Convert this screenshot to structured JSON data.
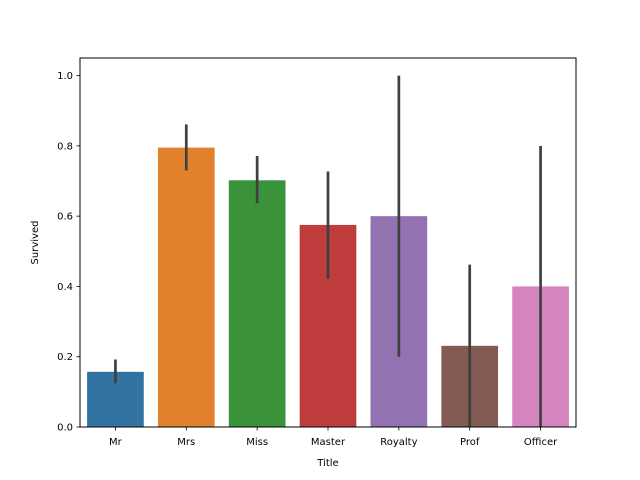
{
  "chart_data": {
    "type": "bar",
    "title": "",
    "xlabel": "Title",
    "ylabel": "Survived",
    "ylim": [
      0,
      1.05
    ],
    "yticks": [
      0.0,
      0.2,
      0.4,
      0.6,
      0.8,
      1.0
    ],
    "ytick_labels": [
      "0.0",
      "0.2",
      "0.4",
      "0.6",
      "0.8",
      "1.0"
    ],
    "grid": false,
    "legend": "none",
    "categories": [
      "Mr",
      "Mrs",
      "Miss",
      "Master",
      "Royalty",
      "Prof",
      "Officer"
    ],
    "values": [
      0.157,
      0.795,
      0.702,
      0.575,
      0.6,
      0.231,
      0.4
    ],
    "ci_low": [
      0.124,
      0.73,
      0.637,
      0.422,
      0.2,
      0.0,
      0.0
    ],
    "ci_high": [
      0.192,
      0.861,
      0.771,
      0.727,
      1.0,
      0.462,
      0.8
    ],
    "colors": [
      "#3274a1",
      "#e1812c",
      "#3a923a",
      "#c03d3e",
      "#9372b2",
      "#845b53",
      "#d684bd"
    ],
    "error_color": "#3f3f3f"
  }
}
